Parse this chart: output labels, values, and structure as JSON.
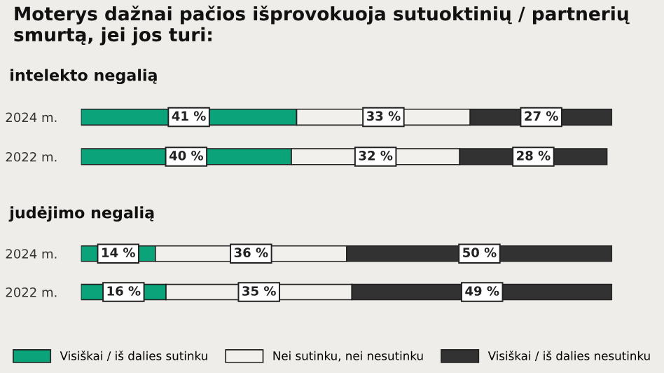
{
  "chart_data": [
    {
      "type": "bar",
      "orientation": "horizontal",
      "stacked": true,
      "title": "Moterys dažnai pačios išprovokuoja sutuoktinių / partnerių smurtą, jei jos turi:",
      "subtitle": "intelekto negalią",
      "categories": [
        "2024 m.",
        "2022 m."
      ],
      "legend": false,
      "series": [
        {
          "color": "#0aa37a",
          "values": [
            41,
            40
          ],
          "value_labels": [
            "41 %",
            "40 %"
          ]
        },
        {
          "color": "#f1f0ec",
          "values": [
            33,
            32
          ],
          "value_labels": [
            "33 %",
            "32 %"
          ]
        },
        {
          "color": "#323232",
          "values": [
            27,
            28
          ],
          "value_labels": [
            "27 %",
            "28 %"
          ]
        }
      ]
    },
    {
      "type": "bar",
      "orientation": "horizontal",
      "stacked": true,
      "subtitle": "judėjimo negalią",
      "categories": [
        "2024 m.",
        "2022 m."
      ],
      "legend": "bottom",
      "series": [
        {
          "name": "Visiškai / iš dalies sutinku",
          "color": "#0aa37a",
          "values": [
            14,
            16
          ],
          "value_labels": [
            "14 %",
            "16 %"
          ]
        },
        {
          "name": "Nei sutinku, nei nesutinku",
          "color": "#f1f0ec",
          "values": [
            36,
            35
          ],
          "value_labels": [
            "36 %",
            "35 %"
          ]
        },
        {
          "name": "Visiškai / iš dalies nesutinku",
          "color": "#323232",
          "values": [
            50,
            49
          ],
          "value_labels": [
            "50 %",
            "49 %"
          ]
        }
      ]
    }
  ]
}
